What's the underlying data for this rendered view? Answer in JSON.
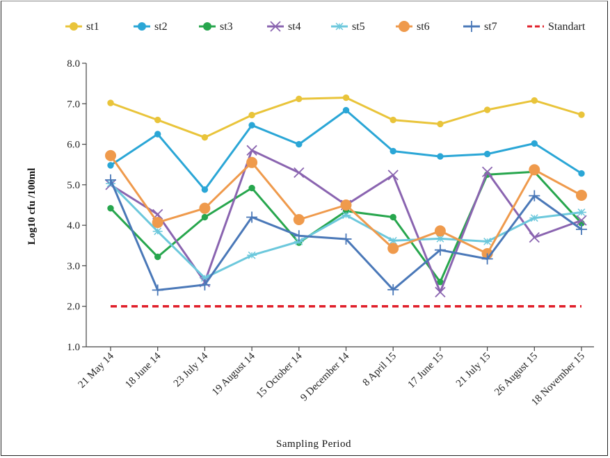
{
  "chart_data": {
    "type": "line",
    "categories": [
      "21 May 14",
      "18 June 14",
      "23 July 14",
      "19 August 14",
      "15 October 14",
      "9 December 14",
      "8 April 15",
      "17 June 15",
      "21 July 15",
      "26 August 15",
      "18 November 15"
    ],
    "xlabel": "Sampling Period",
    "ylabel": "Log10  cfu /100ml",
    "ylim": [
      1.0,
      8.0
    ],
    "yticks": [
      "1.0",
      "2.0",
      "3.0",
      "4.0",
      "5.0",
      "6.0",
      "7.0",
      "8.0"
    ],
    "grid": false,
    "legend_position": "top",
    "series": [
      {
        "name": "st1",
        "color": "#e9c43a",
        "marker": "circle-small",
        "values": [
          7.02,
          6.6,
          6.17,
          6.72,
          7.12,
          7.15,
          6.6,
          6.5,
          6.85,
          7.08,
          6.73
        ]
      },
      {
        "name": "st2",
        "color": "#2aa6d6",
        "marker": "circle-small",
        "values": [
          5.48,
          6.25,
          4.88,
          6.47,
          6.0,
          6.84,
          5.83,
          5.7,
          5.76,
          6.02,
          5.28
        ]
      },
      {
        "name": "st3",
        "color": "#27a64d",
        "marker": "circle-small",
        "values": [
          4.42,
          3.22,
          4.2,
          4.92,
          3.57,
          4.35,
          4.2,
          2.6,
          5.25,
          5.32,
          4.05
        ]
      },
      {
        "name": "st4",
        "color": "#8a64b0",
        "marker": "x",
        "values": [
          5.0,
          4.27,
          2.6,
          5.85,
          5.3,
          4.5,
          5.24,
          2.35,
          5.32,
          3.7,
          4.12
        ]
      },
      {
        "name": "st5",
        "color": "#6cc8dc",
        "marker": "asterisk",
        "values": [
          5.03,
          3.85,
          2.7,
          3.26,
          3.6,
          4.25,
          3.62,
          3.67,
          3.6,
          4.18,
          4.32
        ]
      },
      {
        "name": "st6",
        "color": "#ef9a4c",
        "marker": "circle-large",
        "values": [
          5.72,
          4.07,
          4.42,
          5.55,
          4.14,
          4.5,
          3.43,
          3.86,
          3.3,
          5.37,
          4.74
        ]
      },
      {
        "name": "st7",
        "color": "#4a78b8",
        "marker": "plus",
        "values": [
          5.12,
          2.4,
          2.53,
          4.2,
          3.74,
          3.66,
          2.41,
          3.39,
          3.17,
          4.73,
          3.9
        ]
      },
      {
        "name": "Standart",
        "color": "#e0202b",
        "marker": "none",
        "dashed": true,
        "values": [
          2.0,
          2.0,
          2.0,
          2.0,
          2.0,
          2.0,
          2.0,
          2.0,
          2.0,
          2.0,
          2.0
        ]
      }
    ]
  }
}
